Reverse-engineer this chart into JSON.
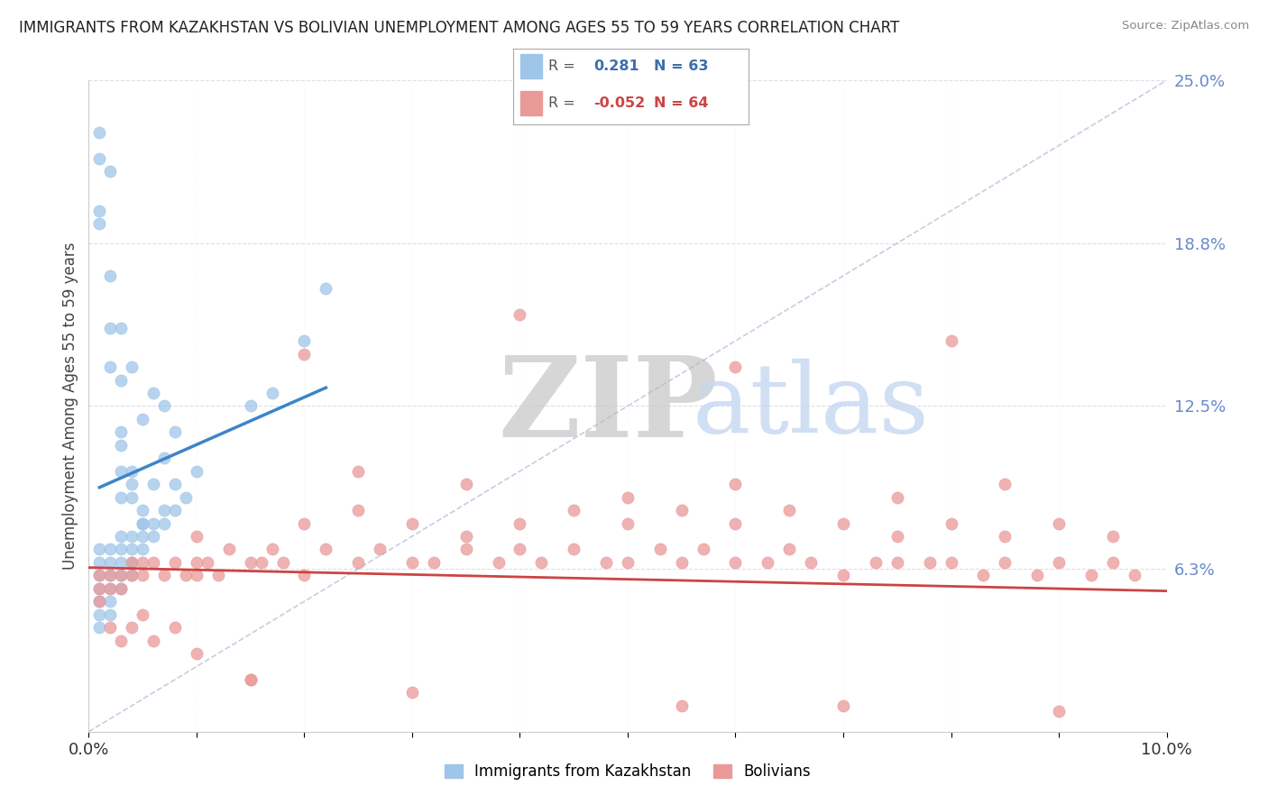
{
  "title": "IMMIGRANTS FROM KAZAKHSTAN VS BOLIVIAN UNEMPLOYMENT AMONG AGES 55 TO 59 YEARS CORRELATION CHART",
  "source": "Source: ZipAtlas.com",
  "ylabel": "Unemployment Among Ages 55 to 59 years",
  "xlim": [
    0.0,
    0.1
  ],
  "ylim": [
    0.0,
    0.25
  ],
  "ytick_vals": [
    0.0,
    0.0625,
    0.125,
    0.1875,
    0.25
  ],
  "ytick_labels": [
    "",
    "6.3%",
    "12.5%",
    "18.8%",
    "25.0%"
  ],
  "xtick_vals": [
    0.0,
    0.01,
    0.02,
    0.03,
    0.04,
    0.05,
    0.06,
    0.07,
    0.08,
    0.09,
    0.1
  ],
  "xtick_labels": [
    "0.0%",
    "",
    "",
    "",
    "",
    "",
    "",
    "",
    "",
    "",
    "10.0%"
  ],
  "legend1_r": "0.281",
  "legend1_n": "63",
  "legend2_r": "-0.052",
  "legend2_n": "64",
  "color_blue": "#9fc5e8",
  "color_pink": "#ea9999",
  "color_trend_blue": "#3d85c8",
  "color_trend_pink": "#cc4444",
  "color_diag": "#aabbd4",
  "color_ytick": "#6688cc",
  "kaz_x": [
    0.001,
    0.001,
    0.001,
    0.001,
    0.001,
    0.001,
    0.001,
    0.002,
    0.002,
    0.002,
    0.002,
    0.002,
    0.002,
    0.003,
    0.003,
    0.003,
    0.003,
    0.003,
    0.004,
    0.004,
    0.004,
    0.004,
    0.005,
    0.005,
    0.005,
    0.006,
    0.006,
    0.007,
    0.007,
    0.008,
    0.008,
    0.009,
    0.01,
    0.001,
    0.001,
    0.002,
    0.002,
    0.003,
    0.003,
    0.003,
    0.004,
    0.004,
    0.005,
    0.006,
    0.007,
    0.015,
    0.017,
    0.02,
    0.022,
    0.001,
    0.001,
    0.002,
    0.003,
    0.004,
    0.005,
    0.006,
    0.007,
    0.008,
    0.002,
    0.003,
    0.003,
    0.004,
    0.005
  ],
  "kaz_y": [
    0.055,
    0.06,
    0.065,
    0.07,
    0.045,
    0.05,
    0.04,
    0.055,
    0.06,
    0.065,
    0.045,
    0.07,
    0.05,
    0.06,
    0.065,
    0.07,
    0.075,
    0.055,
    0.065,
    0.07,
    0.075,
    0.06,
    0.07,
    0.075,
    0.08,
    0.075,
    0.08,
    0.08,
    0.085,
    0.085,
    0.095,
    0.09,
    0.1,
    0.195,
    0.23,
    0.155,
    0.175,
    0.1,
    0.115,
    0.09,
    0.09,
    0.095,
    0.08,
    0.095,
    0.105,
    0.125,
    0.13,
    0.15,
    0.17,
    0.22,
    0.2,
    0.215,
    0.155,
    0.14,
    0.12,
    0.13,
    0.125,
    0.115,
    0.14,
    0.135,
    0.11,
    0.1,
    0.085
  ],
  "bol_x": [
    0.001,
    0.001,
    0.001,
    0.002,
    0.002,
    0.003,
    0.003,
    0.004,
    0.004,
    0.005,
    0.005,
    0.006,
    0.007,
    0.008,
    0.009,
    0.01,
    0.01,
    0.011,
    0.012,
    0.013,
    0.015,
    0.016,
    0.017,
    0.018,
    0.02,
    0.022,
    0.025,
    0.027,
    0.03,
    0.032,
    0.035,
    0.038,
    0.04,
    0.042,
    0.045,
    0.048,
    0.05,
    0.053,
    0.055,
    0.057,
    0.06,
    0.063,
    0.065,
    0.067,
    0.07,
    0.073,
    0.075,
    0.078,
    0.08,
    0.083,
    0.085,
    0.088,
    0.09,
    0.093,
    0.095,
    0.097,
    0.002,
    0.003,
    0.004,
    0.005,
    0.006,
    0.008,
    0.01,
    0.015
  ],
  "bol_y": [
    0.06,
    0.055,
    0.05,
    0.06,
    0.055,
    0.06,
    0.055,
    0.065,
    0.06,
    0.065,
    0.06,
    0.065,
    0.06,
    0.065,
    0.06,
    0.065,
    0.06,
    0.065,
    0.06,
    0.07,
    0.065,
    0.065,
    0.07,
    0.065,
    0.06,
    0.07,
    0.065,
    0.07,
    0.065,
    0.065,
    0.07,
    0.065,
    0.07,
    0.065,
    0.07,
    0.065,
    0.065,
    0.07,
    0.065,
    0.07,
    0.065,
    0.065,
    0.07,
    0.065,
    0.06,
    0.065,
    0.065,
    0.065,
    0.065,
    0.06,
    0.065,
    0.06,
    0.065,
    0.06,
    0.065,
    0.06,
    0.04,
    0.035,
    0.04,
    0.045,
    0.035,
    0.04,
    0.03,
    0.02
  ],
  "bol_x2": [
    0.01,
    0.02,
    0.025,
    0.03,
    0.035,
    0.04,
    0.045,
    0.05,
    0.055,
    0.06,
    0.065,
    0.07,
    0.075,
    0.08,
    0.085,
    0.09,
    0.095,
    0.025,
    0.035,
    0.05,
    0.06,
    0.075,
    0.085,
    0.02,
    0.04,
    0.06,
    0.08,
    0.015,
    0.03,
    0.055,
    0.07,
    0.09
  ],
  "bol_y2": [
    0.075,
    0.08,
    0.085,
    0.08,
    0.075,
    0.08,
    0.085,
    0.08,
    0.085,
    0.08,
    0.085,
    0.08,
    0.075,
    0.08,
    0.075,
    0.08,
    0.075,
    0.1,
    0.095,
    0.09,
    0.095,
    0.09,
    0.095,
    0.145,
    0.16,
    0.14,
    0.15,
    0.02,
    0.015,
    0.01,
    0.01,
    0.008
  ]
}
